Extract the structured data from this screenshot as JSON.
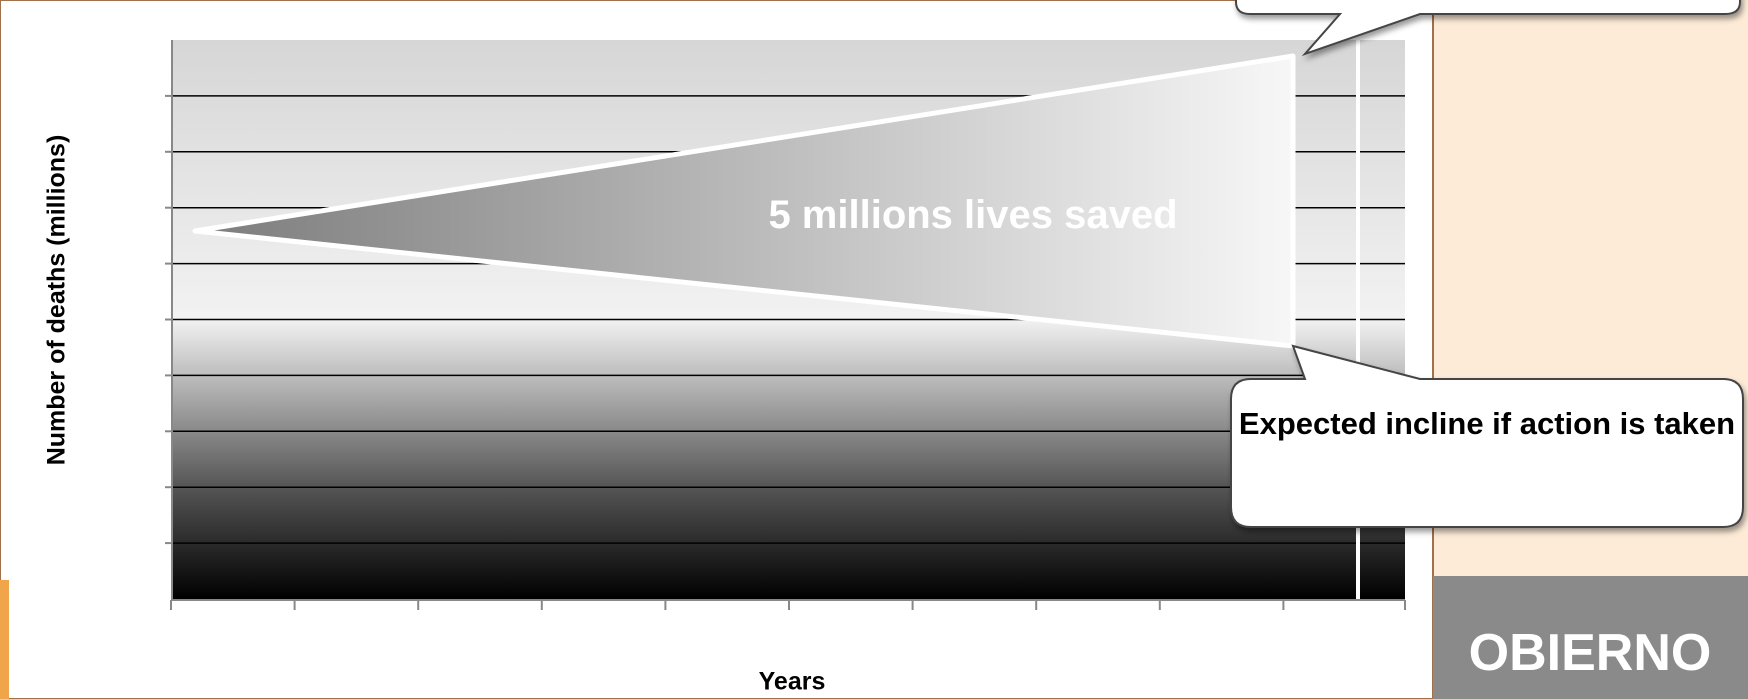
{
  "chart": {
    "y_axis_label": "Number of deaths (millions)",
    "x_axis_label": "Years",
    "annotation": "5 millions lives saved",
    "callout": "Expected incline if action is taken"
  },
  "logo_text": "OBIERNO"
}
